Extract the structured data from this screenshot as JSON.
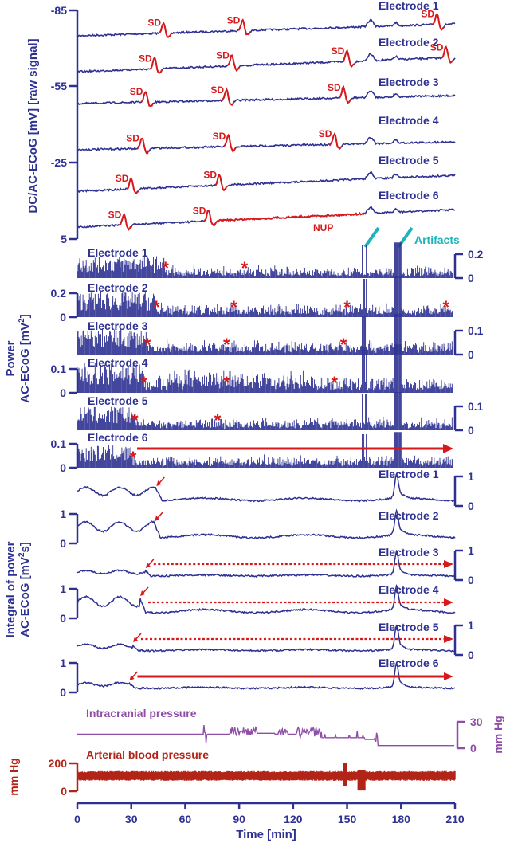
{
  "colors": {
    "navy": "#2e3192",
    "red": "#d7191c",
    "teal": "#1fb3b8",
    "purple": "#8e4da6",
    "dark_red": "#b22418"
  },
  "chart_data": [
    {
      "type": "line",
      "panel": "dc_ac_ecog",
      "ylabel": "DC/AC-ECoG [mV] [raw signal]",
      "y_ticks": [
        "-85",
        "-55",
        "-25",
        "5"
      ],
      "ylim": [
        5,
        -85
      ],
      "xlim": [
        0,
        210
      ],
      "series": [
        {
          "name": "Electrode 1",
          "offset": -76,
          "sd_labels": [
            {
              "text": "SD",
              "t": 48
            },
            {
              "text": "SD",
              "t": 92
            },
            {
              "text": "SD",
              "t": 200
            }
          ]
        },
        {
          "name": "Electrode 2",
          "offset": -61,
          "sd_labels": [
            {
              "text": "SD",
              "t": 43
            },
            {
              "text": "SD",
              "t": 86
            },
            {
              "text": "SD",
              "t": 150
            },
            {
              "text": "SD",
              "t": 205
            }
          ]
        },
        {
          "name": "Electrode 3",
          "offset": -47,
          "sd_labels": [
            {
              "text": "SD",
              "t": 38
            },
            {
              "text": "SD",
              "t": 83
            },
            {
              "text": "SD",
              "t": 148
            }
          ]
        },
        {
          "name": "Electrode 4",
          "offset": -32,
          "sd_labels": [
            {
              "text": "SD",
              "t": 36
            },
            {
              "text": "SD",
              "t": 84
            },
            {
              "text": "SD",
              "t": 143
            }
          ]
        },
        {
          "name": "Electrode 5",
          "offset": -17,
          "sd_labels": [
            {
              "text": "SD",
              "t": 30
            },
            {
              "text": "SD",
              "t": 79
            }
          ]
        },
        {
          "name": "Electrode 6",
          "offset": -3,
          "sd_labels": [
            {
              "text": "SD",
              "t": 26
            },
            {
              "text": "SD",
              "t": 73
            }
          ]
        }
      ],
      "annotations": [
        "NUP",
        "Artifacts"
      ]
    },
    {
      "type": "bar",
      "panel": "power_ac_ecog",
      "ylabel_line1": "Power",
      "ylabel_line2": "AC-ECoG [mV",
      "ylabel_sup": "2",
      "ylabel_end": "]",
      "xlim": [
        0,
        210
      ],
      "series": [
        {
          "name": "Electrode 1",
          "scale": [
            "0.2",
            "0"
          ],
          "scale_side": "right",
          "stars": [
            49,
            93
          ]
        },
        {
          "name": "Electrode 2",
          "scale": [
            "0.2",
            "0"
          ],
          "scale_side": "left",
          "stars": [
            44,
            87,
            150,
            205
          ]
        },
        {
          "name": "Electrode 3",
          "scale": [
            "0.1",
            "0"
          ],
          "scale_side": "right",
          "stars": [
            39,
            83,
            148
          ]
        },
        {
          "name": "Electrode 4",
          "scale": [
            "0.1",
            "0"
          ],
          "scale_side": "left",
          "stars": [
            37,
            83,
            143
          ]
        },
        {
          "name": "Electrode 5",
          "scale": [
            "0.1",
            "0"
          ],
          "scale_side": "right",
          "stars": [
            32,
            78
          ]
        },
        {
          "name": "Electrode 6",
          "scale": [
            "0.1",
            "0"
          ],
          "scale_side": "left",
          "stars": [
            31
          ]
        }
      ]
    },
    {
      "type": "line",
      "panel": "integral_power",
      "ylabel_line1": "Integral of power",
      "ylabel_line2": "AC-ECoG [mV",
      "ylabel_sup": "2",
      "ylabel_end": "s]",
      "xlim": [
        0,
        210
      ],
      "series": [
        {
          "name": "Electrode 1",
          "scale": [
            "1",
            "0"
          ],
          "scale_side": "right",
          "depression_t": 44
        },
        {
          "name": "Electrode 2",
          "scale": [
            "1",
            "0"
          ],
          "scale_side": "left",
          "depression_t": 43
        },
        {
          "name": "Electrode 3",
          "scale": [
            "1",
            "0"
          ],
          "scale_side": "right",
          "depression_t": 38
        },
        {
          "name": "Electrode 4",
          "scale": [
            "1",
            "0"
          ],
          "scale_side": "left",
          "depression_t": 35
        },
        {
          "name": "Electrode 5",
          "scale": [
            "1",
            "0"
          ],
          "scale_side": "right",
          "depression_t": 31
        },
        {
          "name": "Electrode 6",
          "scale": [
            "1",
            "0"
          ],
          "scale_side": "left",
          "depression_t": 29
        }
      ]
    },
    {
      "type": "line",
      "panel": "icp",
      "title": "Intracranial pressure",
      "unit": "mm Hg",
      "ticks": [
        "30",
        "0"
      ],
      "ylim": [
        0,
        30
      ],
      "xlim": [
        0,
        210
      ]
    },
    {
      "type": "area",
      "panel": "abp",
      "title": "Arterial blood pressure",
      "unit": "mm Hg",
      "ticks": [
        "200",
        "0"
      ],
      "ylim": [
        0,
        200
      ],
      "xlim": [
        0,
        210
      ]
    }
  ],
  "x_axis": {
    "ticks": [
      "0",
      "30",
      "60",
      "90",
      "120",
      "150",
      "180",
      "210"
    ],
    "label": "Time [min]"
  }
}
